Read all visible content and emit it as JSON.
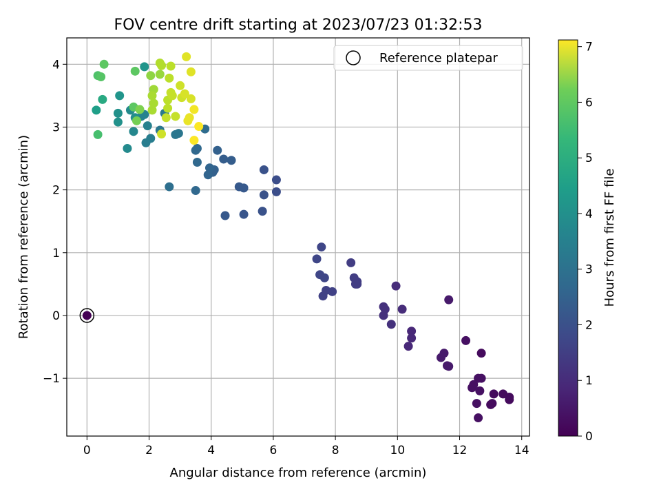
{
  "chart_data": {
    "type": "scatter",
    "title": "FOV centre drift starting at 2023/07/23 01:32:53",
    "xlabel": "Angular distance from reference (arcmin)",
    "ylabel": "Rotation from reference (arcmin)",
    "xlim": [
      -0.65,
      14.25
    ],
    "ylim": [
      -1.92,
      4.42
    ],
    "xticks": [
      0,
      2,
      4,
      6,
      8,
      10,
      12,
      14
    ],
    "xtick_labels": [
      "0",
      "2",
      "4",
      "6",
      "8",
      "10",
      "12",
      "14"
    ],
    "yticks": [
      -1,
      0,
      1,
      2,
      3,
      4
    ],
    "ytick_labels": [
      "−1",
      "0",
      "1",
      "2",
      "3",
      "4"
    ],
    "grid": true,
    "legend": {
      "placement": "top-right",
      "entries": [
        "Reference platepar"
      ]
    },
    "colorbar": {
      "label": "Hours from first FF file",
      "colormap": "viridis",
      "lim": [
        0,
        7.12
      ],
      "ticks": [
        0,
        1,
        2,
        3,
        4,
        5,
        6,
        7
      ],
      "tick_labels": [
        "0",
        "1",
        "2",
        "3",
        "4",
        "5",
        "6",
        "7"
      ]
    },
    "reference_point": {
      "x": 0,
      "y": 0
    },
    "points": [
      {
        "x": 0.0,
        "y": 0.0,
        "c": 0.0
      },
      {
        "x": 12.7,
        "y": -0.6,
        "c": 0.2
      },
      {
        "x": 12.2,
        "y": -0.4,
        "c": 0.3
      },
      {
        "x": 13.1,
        "y": -1.25,
        "c": 0.2
      },
      {
        "x": 13.4,
        "y": -1.25,
        "c": 0.2
      },
      {
        "x": 13.6,
        "y": -1.3,
        "c": 0.2
      },
      {
        "x": 13.6,
        "y": -1.34,
        "c": 0.2
      },
      {
        "x": 13.05,
        "y": -1.4,
        "c": 0.2
      },
      {
        "x": 13.0,
        "y": -1.42,
        "c": 0.2
      },
      {
        "x": 12.7,
        "y": -1.0,
        "c": 0.3
      },
      {
        "x": 12.6,
        "y": -1.0,
        "c": 0.3
      },
      {
        "x": 12.45,
        "y": -1.1,
        "c": 0.3
      },
      {
        "x": 12.4,
        "y": -1.15,
        "c": 0.3
      },
      {
        "x": 12.65,
        "y": -1.2,
        "c": 0.3
      },
      {
        "x": 12.55,
        "y": -1.4,
        "c": 0.3
      },
      {
        "x": 12.6,
        "y": -1.63,
        "c": 0.3
      },
      {
        "x": 11.65,
        "y": 0.25,
        "c": 0.5
      },
      {
        "x": 11.6,
        "y": -0.8,
        "c": 0.5
      },
      {
        "x": 11.65,
        "y": -0.81,
        "c": 0.5
      },
      {
        "x": 11.4,
        "y": -0.67,
        "c": 0.5
      },
      {
        "x": 11.5,
        "y": -0.6,
        "c": 0.5
      },
      {
        "x": 10.45,
        "y": -0.25,
        "c": 0.8
      },
      {
        "x": 10.45,
        "y": -0.36,
        "c": 0.8
      },
      {
        "x": 10.35,
        "y": -0.49,
        "c": 0.8
      },
      {
        "x": 10.15,
        "y": 0.1,
        "c": 0.9
      },
      {
        "x": 9.95,
        "y": 0.47,
        "c": 0.9
      },
      {
        "x": 9.55,
        "y": 0.14,
        "c": 1.0
      },
      {
        "x": 9.6,
        "y": 0.1,
        "c": 1.0
      },
      {
        "x": 9.55,
        "y": 0.0,
        "c": 1.0
      },
      {
        "x": 9.8,
        "y": -0.14,
        "c": 1.0
      },
      {
        "x": 8.5,
        "y": 0.84,
        "c": 1.3
      },
      {
        "x": 8.6,
        "y": 0.6,
        "c": 1.3
      },
      {
        "x": 8.7,
        "y": 0.54,
        "c": 1.3
      },
      {
        "x": 8.7,
        "y": 0.5,
        "c": 1.3
      },
      {
        "x": 8.65,
        "y": 0.5,
        "c": 1.3
      },
      {
        "x": 7.9,
        "y": 0.38,
        "c": 1.4
      },
      {
        "x": 7.7,
        "y": 0.4,
        "c": 1.4
      },
      {
        "x": 7.6,
        "y": 0.31,
        "c": 1.4
      },
      {
        "x": 7.55,
        "y": 1.09,
        "c": 1.5
      },
      {
        "x": 7.4,
        "y": 0.9,
        "c": 1.5
      },
      {
        "x": 7.5,
        "y": 0.65,
        "c": 1.5
      },
      {
        "x": 7.65,
        "y": 0.6,
        "c": 1.5
      },
      {
        "x": 6.1,
        "y": 2.16,
        "c": 1.7
      },
      {
        "x": 5.7,
        "y": 2.32,
        "c": 1.8
      },
      {
        "x": 6.1,
        "y": 1.97,
        "c": 1.7
      },
      {
        "x": 5.7,
        "y": 1.92,
        "c": 1.8
      },
      {
        "x": 5.65,
        "y": 1.66,
        "c": 1.8
      },
      {
        "x": 5.05,
        "y": 1.61,
        "c": 1.9
      },
      {
        "x": 4.45,
        "y": 1.59,
        "c": 2.0
      },
      {
        "x": 4.9,
        "y": 2.05,
        "c": 2.0
      },
      {
        "x": 5.05,
        "y": 2.03,
        "c": 2.0
      },
      {
        "x": 4.65,
        "y": 2.47,
        "c": 2.1
      },
      {
        "x": 4.4,
        "y": 2.49,
        "c": 2.1
      },
      {
        "x": 4.2,
        "y": 2.63,
        "c": 2.2
      },
      {
        "x": 4.1,
        "y": 2.32,
        "c": 2.2
      },
      {
        "x": 4.05,
        "y": 2.28,
        "c": 2.2
      },
      {
        "x": 3.95,
        "y": 2.35,
        "c": 2.3
      },
      {
        "x": 3.9,
        "y": 2.24,
        "c": 2.3
      },
      {
        "x": 3.55,
        "y": 2.44,
        "c": 2.4
      },
      {
        "x": 3.55,
        "y": 2.66,
        "c": 2.4
      },
      {
        "x": 3.5,
        "y": 2.63,
        "c": 2.4
      },
      {
        "x": 3.5,
        "y": 1.99,
        "c": 2.4
      },
      {
        "x": 2.65,
        "y": 2.05,
        "c": 2.6
      },
      {
        "x": 3.8,
        "y": 2.97,
        "c": 2.5
      },
      {
        "x": 2.35,
        "y": 2.95,
        "c": 2.8
      },
      {
        "x": 2.5,
        "y": 3.22,
        "c": 2.9
      },
      {
        "x": 2.95,
        "y": 2.9,
        "c": 2.8
      },
      {
        "x": 2.85,
        "y": 2.88,
        "c": 2.8
      },
      {
        "x": 2.05,
        "y": 2.82,
        "c": 3.0
      },
      {
        "x": 1.9,
        "y": 2.75,
        "c": 3.0
      },
      {
        "x": 1.95,
        "y": 3.02,
        "c": 3.1
      },
      {
        "x": 1.75,
        "y": 3.17,
        "c": 3.2
      },
      {
        "x": 1.85,
        "y": 3.2,
        "c": 3.2
      },
      {
        "x": 1.5,
        "y": 2.93,
        "c": 3.3
      },
      {
        "x": 1.3,
        "y": 2.66,
        "c": 3.4
      },
      {
        "x": 1.4,
        "y": 3.27,
        "c": 3.4
      },
      {
        "x": 1.55,
        "y": 3.15,
        "c": 3.5
      },
      {
        "x": 1.0,
        "y": 3.22,
        "c": 3.6
      },
      {
        "x": 1.0,
        "y": 3.08,
        "c": 3.6
      },
      {
        "x": 1.05,
        "y": 3.5,
        "c": 3.7
      },
      {
        "x": 1.85,
        "y": 3.96,
        "c": 3.7
      },
      {
        "x": 0.3,
        "y": 3.27,
        "c": 4.0
      },
      {
        "x": 0.5,
        "y": 3.44,
        "c": 4.3
      },
      {
        "x": 0.35,
        "y": 2.88,
        "c": 5.0
      },
      {
        "x": 0.35,
        "y": 3.82,
        "c": 5.1
      },
      {
        "x": 0.45,
        "y": 3.8,
        "c": 5.2
      },
      {
        "x": 0.55,
        "y": 4.0,
        "c": 5.3
      },
      {
        "x": 1.55,
        "y": 3.89,
        "c": 5.3
      },
      {
        "x": 1.5,
        "y": 3.32,
        "c": 5.3
      },
      {
        "x": 1.6,
        "y": 3.1,
        "c": 5.6
      },
      {
        "x": 1.7,
        "y": 3.28,
        "c": 5.7
      },
      {
        "x": 2.05,
        "y": 3.82,
        "c": 5.9
      },
      {
        "x": 2.35,
        "y": 3.84,
        "c": 6.0
      },
      {
        "x": 2.15,
        "y": 3.6,
        "c": 6.1
      },
      {
        "x": 2.15,
        "y": 3.38,
        "c": 6.2
      },
      {
        "x": 2.1,
        "y": 3.27,
        "c": 6.2
      },
      {
        "x": 2.1,
        "y": 3.5,
        "c": 6.2
      },
      {
        "x": 2.35,
        "y": 4.02,
        "c": 6.3
      },
      {
        "x": 2.4,
        "y": 3.98,
        "c": 6.3
      },
      {
        "x": 2.7,
        "y": 3.97,
        "c": 6.4
      },
      {
        "x": 2.65,
        "y": 3.78,
        "c": 6.4
      },
      {
        "x": 2.6,
        "y": 3.43,
        "c": 6.4
      },
      {
        "x": 2.6,
        "y": 3.3,
        "c": 6.4
      },
      {
        "x": 2.55,
        "y": 3.15,
        "c": 6.5
      },
      {
        "x": 2.7,
        "y": 3.55,
        "c": 6.5
      },
      {
        "x": 2.75,
        "y": 3.5,
        "c": 6.5
      },
      {
        "x": 2.85,
        "y": 3.17,
        "c": 6.5
      },
      {
        "x": 2.4,
        "y": 2.89,
        "c": 6.6
      },
      {
        "x": 3.0,
        "y": 3.66,
        "c": 6.6
      },
      {
        "x": 3.05,
        "y": 3.47,
        "c": 6.6
      },
      {
        "x": 3.15,
        "y": 3.53,
        "c": 6.7
      },
      {
        "x": 3.35,
        "y": 3.45,
        "c": 6.7
      },
      {
        "x": 3.2,
        "y": 4.12,
        "c": 6.8
      },
      {
        "x": 3.35,
        "y": 3.88,
        "c": 6.8
      },
      {
        "x": 3.25,
        "y": 3.1,
        "c": 6.9
      },
      {
        "x": 3.3,
        "y": 3.15,
        "c": 6.9
      },
      {
        "x": 3.45,
        "y": 3.28,
        "c": 7.0
      },
      {
        "x": 3.45,
        "y": 2.79,
        "c": 7.1
      },
      {
        "x": 3.6,
        "y": 3.01,
        "c": 7.1
      }
    ]
  }
}
